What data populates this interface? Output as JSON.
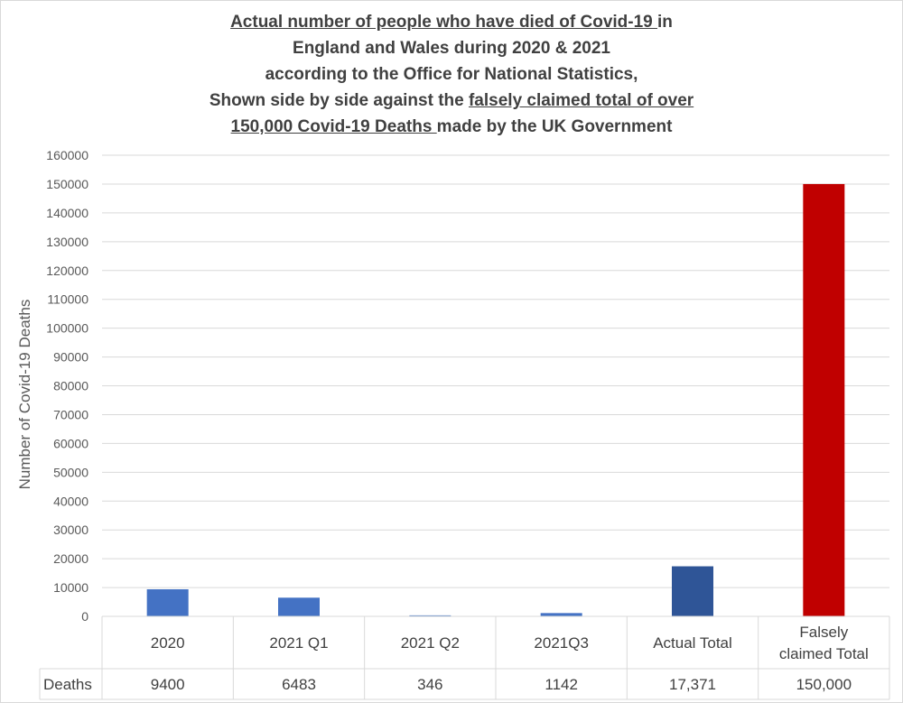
{
  "title_lines": [
    {
      "parts": [
        {
          "text": "Actual number of people who have died of Covid-19 ",
          "u": true
        },
        {
          "text": "in",
          "u": false
        }
      ]
    },
    {
      "parts": [
        {
          "text": "England and Wales during 2020 & 2021",
          "u": false
        }
      ]
    },
    {
      "parts": [
        {
          "text": "according to the Office for National Statistics,",
          "u": false
        }
      ]
    },
    {
      "parts": [
        {
          "text": "Shown side by side against the ",
          "u": false
        },
        {
          "text": "falsely claimed total of over",
          "u": true
        }
      ]
    },
    {
      "parts": [
        {
          "text": "150,000 Covid-19 Deaths ",
          "u": true
        },
        {
          "text": "made by the UK Government",
          "u": false
        }
      ]
    }
  ],
  "colors": {
    "bar_light": "#4472c4",
    "bar_dark": "#2f5597",
    "bar_red": "#c00000",
    "grid": "#d9d9d9"
  },
  "chart_data": {
    "type": "bar",
    "ylabel": "Number of Covid-19 Deaths",
    "ylim": [
      0,
      160000
    ],
    "ytick_step": 10000,
    "grid": true,
    "categories": [
      [
        "2020"
      ],
      [
        "2021 Q1"
      ],
      [
        "2021 Q2"
      ],
      [
        "2021Q3"
      ],
      [
        "Actual Total"
      ],
      [
        "Falsely",
        "claimed Total"
      ]
    ],
    "series": [
      {
        "name": "Deaths",
        "values": [
          9400,
          6483,
          346,
          1142,
          17371,
          150000
        ],
        "labels": [
          "9400",
          "6483",
          "346",
          "1142",
          "17,371",
          "150,000"
        ],
        "colors": [
          "#4472c4",
          "#4472c4",
          "#4472c4",
          "#4472c4",
          "#2f5597",
          "#c00000"
        ]
      }
    ]
  }
}
